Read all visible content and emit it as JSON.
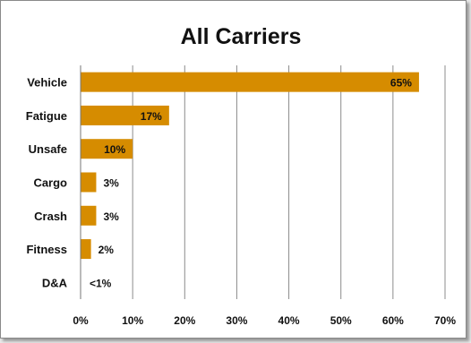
{
  "chart_data": {
    "type": "bar",
    "orientation": "horizontal",
    "title": "All Carriers",
    "categories": [
      "Vehicle",
      "Fatigue",
      "Unsafe",
      "Cargo",
      "Crash",
      "Fitness",
      "D&A"
    ],
    "values": [
      65,
      17,
      10,
      3,
      3,
      2,
      0.5
    ],
    "data_labels": [
      "65%",
      "17%",
      "10%",
      "3%",
      "3%",
      "2%",
      "<1%"
    ],
    "xlim": [
      0,
      70
    ],
    "xticks": [
      "0%",
      "10%",
      "20%",
      "30%",
      "40%",
      "50%",
      "60%",
      "70%"
    ],
    "grid": "vertical",
    "legend": "none",
    "bar_color": "#d68c00"
  }
}
